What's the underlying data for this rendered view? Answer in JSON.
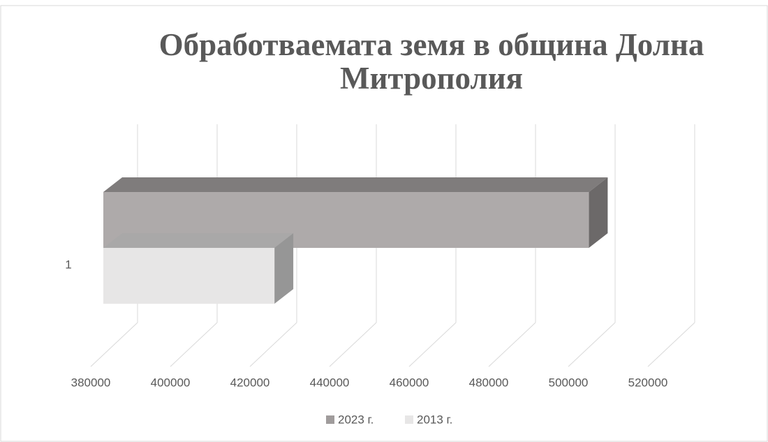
{
  "chart_data": {
    "type": "bar3d",
    "orientation": "horizontal",
    "title": "Обработваемата земя в община Долна Митрополия",
    "categories": [
      "1"
    ],
    "series": [
      {
        "name": "2023 г.",
        "color": "#aeaaaa",
        "values": [
          502000
        ]
      },
      {
        "name": "2013 г.",
        "color": "#e7e6e6",
        "values": [
          423000
        ]
      }
    ],
    "xlim": [
      380000,
      520000
    ],
    "xticks": [
      380000,
      400000,
      420000,
      440000,
      460000,
      480000,
      500000,
      520000
    ],
    "grid": true,
    "legend": "bottom"
  }
}
